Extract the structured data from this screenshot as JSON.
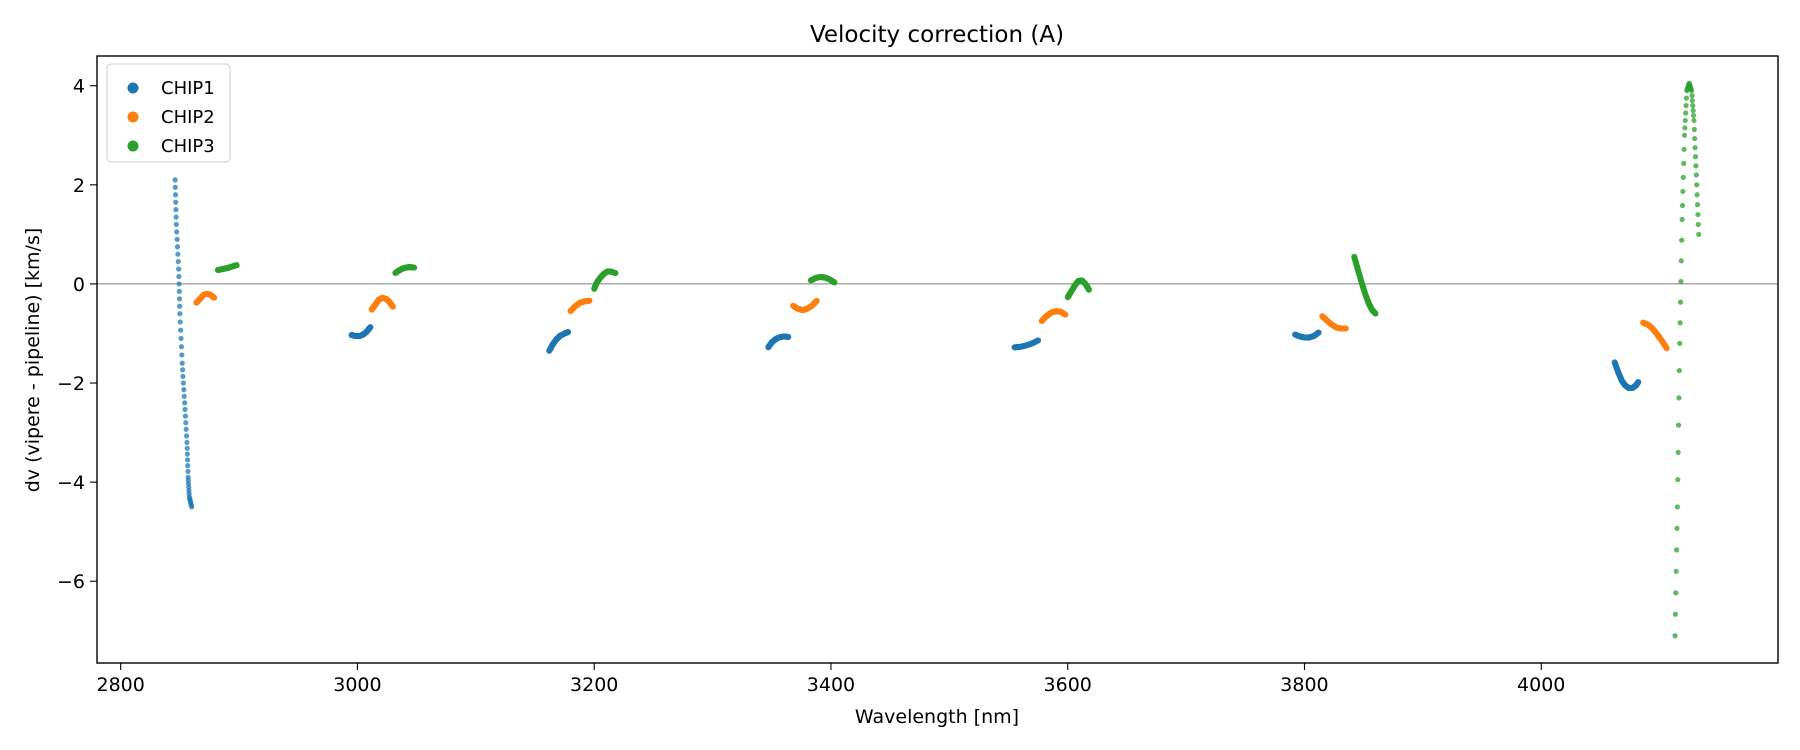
{
  "chart_data": {
    "type": "scatter",
    "title": "Velocity correction (A)",
    "xlabel": "Wavelength [nm]",
    "ylabel": "dv (vipere - pipeline) [km/s]",
    "xlim": [
      2780,
      4200
    ],
    "ylim": [
      -7.65,
      4.6
    ],
    "xticks": [
      2800,
      3000,
      3200,
      3400,
      3600,
      3800,
      4000
    ],
    "yticks": [
      4,
      2,
      0,
      -2,
      -4,
      -6
    ],
    "ytick_labels": [
      "4",
      "2",
      "0",
      "−2",
      "−4",
      "−6"
    ],
    "reference_line_y": 0,
    "legend_position": "upper-left",
    "series": [
      {
        "name": "CHIP1",
        "color": "#1f77b4",
        "segments": [
          {
            "x": [
              2846,
              2847,
              2849,
              2850,
              2852,
              2854,
              2856,
              2857,
              2858,
              2860
            ],
            "y": [
              2.1,
              1.2,
              0.3,
              -0.6,
              -1.6,
              -2.4,
              -3.2,
              -3.9,
              -4.3,
              -4.5
            ],
            "sparse": true
          },
          {
            "x": [
              2995,
              2998,
              3002,
              3005,
              3008,
              3011
            ],
            "y": [
              -1.03,
              -1.05,
              -1.05,
              -1.02,
              -0.96,
              -0.87
            ]
          },
          {
            "x": [
              3162,
              3165,
              3168,
              3171,
              3175,
              3178
            ],
            "y": [
              -1.35,
              -1.22,
              -1.12,
              -1.05,
              -1.0,
              -0.97
            ]
          },
          {
            "x": [
              3347,
              3350,
              3353,
              3356,
              3360,
              3364
            ],
            "y": [
              -1.28,
              -1.18,
              -1.12,
              -1.08,
              -1.06,
              -1.07
            ]
          },
          {
            "x": [
              3555,
              3560,
              3565,
              3570,
              3575
            ],
            "y": [
              -1.28,
              -1.27,
              -1.24,
              -1.2,
              -1.14
            ]
          },
          {
            "x": [
              3792,
              3796,
              3800,
              3804,
              3808,
              3812
            ],
            "y": [
              -1.02,
              -1.06,
              -1.08,
              -1.08,
              -1.05,
              -0.98
            ]
          },
          {
            "x": [
              4062,
              4065,
              4068,
              4071,
              4074,
              4077,
              4080,
              4082
            ],
            "y": [
              -1.58,
              -1.78,
              -1.95,
              -2.05,
              -2.1,
              -2.1,
              -2.05,
              -1.98
            ]
          }
        ]
      },
      {
        "name": "CHIP2",
        "color": "#ff7f0e",
        "segments": [
          {
            "x": [
              2864,
              2867,
              2870,
              2873,
              2876,
              2879
            ],
            "y": [
              -0.38,
              -0.3,
              -0.22,
              -0.2,
              -0.22,
              -0.28
            ]
          },
          {
            "x": [
              3012,
              3015,
              3018,
              3021,
              3024,
              3027,
              3030
            ],
            "y": [
              -0.52,
              -0.42,
              -0.32,
              -0.28,
              -0.3,
              -0.36,
              -0.46
            ]
          },
          {
            "x": [
              3180,
              3184,
              3188,
              3192,
              3196
            ],
            "y": [
              -0.55,
              -0.45,
              -0.38,
              -0.35,
              -0.34
            ]
          },
          {
            "x": [
              3368,
              3372,
              3376,
              3380,
              3384,
              3388
            ],
            "y": [
              -0.44,
              -0.5,
              -0.53,
              -0.5,
              -0.44,
              -0.34
            ]
          },
          {
            "x": [
              3578,
              3582,
              3586,
              3590,
              3594,
              3598
            ],
            "y": [
              -0.75,
              -0.65,
              -0.58,
              -0.55,
              -0.56,
              -0.62
            ]
          },
          {
            "x": [
              3815,
              3819,
              3823,
              3827,
              3831,
              3835
            ],
            "y": [
              -0.65,
              -0.74,
              -0.82,
              -0.88,
              -0.9,
              -0.9
            ]
          },
          {
            "x": [
              4086,
              4090,
              4094,
              4098,
              4102,
              4106
            ],
            "y": [
              -0.78,
              -0.82,
              -0.9,
              -1.02,
              -1.15,
              -1.3
            ]
          }
        ]
      },
      {
        "name": "CHIP3",
        "color": "#2ca02c",
        "segments": [
          {
            "x": [
              2882,
              2886,
              2890,
              2894,
              2898
            ],
            "y": [
              0.28,
              0.3,
              0.32,
              0.35,
              0.38
            ]
          },
          {
            "x": [
              3032,
              3035,
              3038,
              3041,
              3044,
              3048
            ],
            "y": [
              0.22,
              0.27,
              0.31,
              0.33,
              0.34,
              0.33
            ]
          },
          {
            "x": [
              3200,
              3202,
              3205,
              3208,
              3211,
              3214,
              3218
            ],
            "y": [
              -0.1,
              0.02,
              0.12,
              0.2,
              0.25,
              0.25,
              0.22
            ]
          },
          {
            "x": [
              3383,
              3387,
              3391,
              3395,
              3399,
              3403
            ],
            "y": [
              0.07,
              0.12,
              0.14,
              0.13,
              0.09,
              0.03
            ]
          },
          {
            "x": [
              3600,
              3603,
              3606,
              3609,
              3612,
              3615,
              3618
            ],
            "y": [
              -0.27,
              -0.15,
              -0.03,
              0.06,
              0.07,
              0.0,
              -0.12
            ]
          },
          {
            "x": [
              3842,
              3845,
              3848,
              3851,
              3854,
              3857,
              3860
            ],
            "y": [
              0.55,
              0.3,
              0.05,
              -0.18,
              -0.38,
              -0.52,
              -0.6
            ]
          },
          {
            "x": [
              4113,
              4115,
              4117,
              4119,
              4121,
              4123,
              4125,
              4127,
              4129,
              4131,
              4133
            ],
            "y": [
              -7.1,
              -4.5,
              -1.2,
              1.3,
              3.0,
              3.9,
              4.05,
              3.9,
              3.3,
              2.2,
              1.0
            ],
            "sparse": true
          }
        ]
      }
    ]
  }
}
